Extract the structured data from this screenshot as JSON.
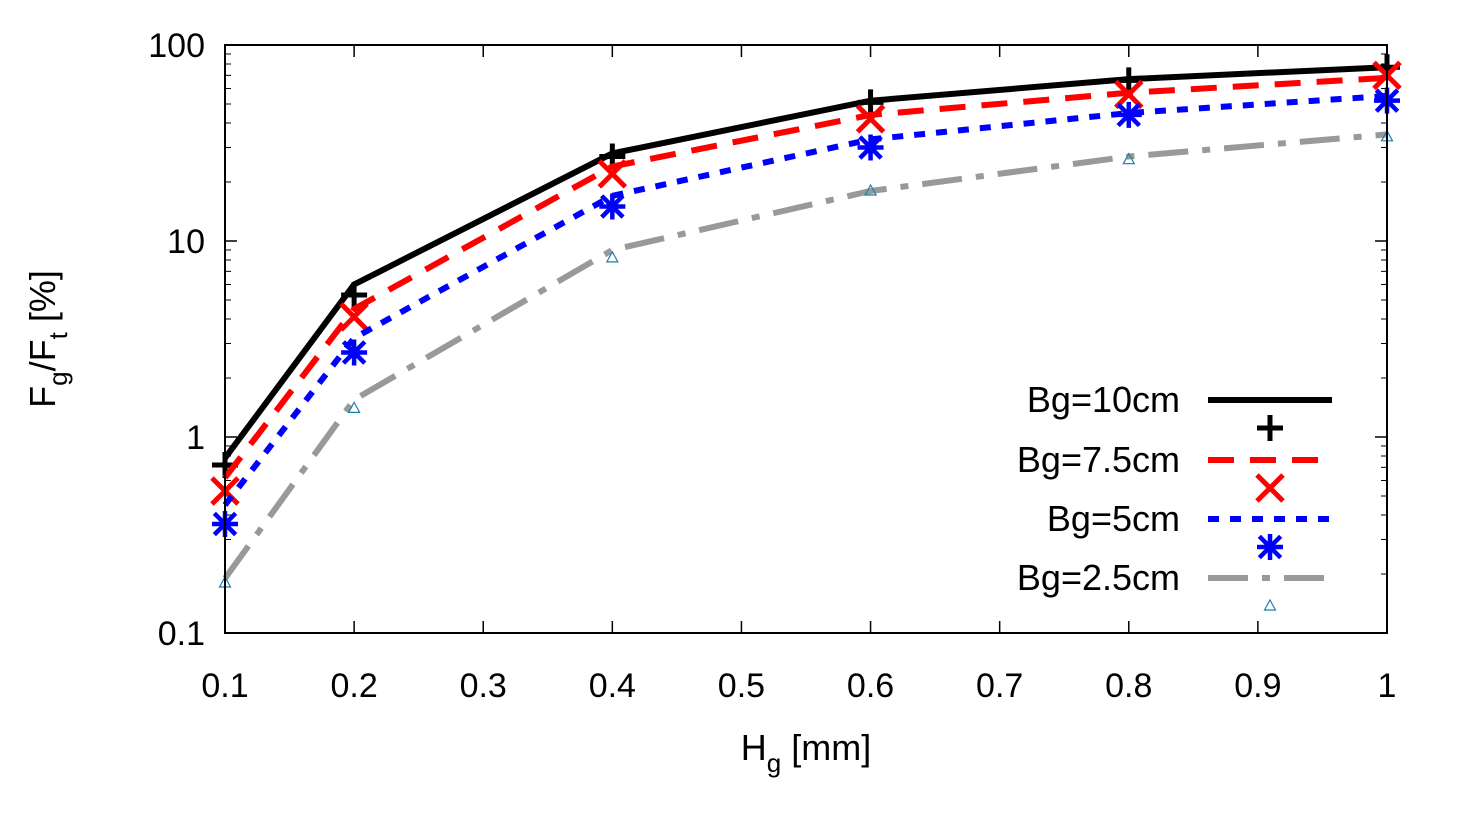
{
  "chart_data": {
    "type": "line",
    "x_scale": "linear",
    "y_scale": "log",
    "xlabel_main": "H",
    "xlabel_sub": "g",
    "xlabel_rest": " [mm]",
    "ylabel_parts": {
      "a": "F",
      "a_sub": "g",
      "b": "/F",
      "b_sub": "t",
      "rest": " [%]"
    },
    "xlim": [
      0.1,
      1.0
    ],
    "ylim": [
      0.1,
      100
    ],
    "xticks": [
      0.1,
      0.2,
      0.3,
      0.4,
      0.5,
      0.6,
      0.7,
      0.8,
      0.9,
      1.0
    ],
    "xtick_labels": [
      "0.1",
      "0.2",
      "0.3",
      "0.4",
      "0.5",
      "0.6",
      "0.7",
      "0.8",
      "0.9",
      "1"
    ],
    "yticks": [
      0.1,
      1,
      10,
      100
    ],
    "ytick_labels": [
      "0.1",
      "1",
      "10",
      "100"
    ],
    "grid": false,
    "legend_position": "bottom-right",
    "series": [
      {
        "name": "Bg=10cm",
        "line_color": "#000000",
        "line_dash": "solid",
        "marker": "plus",
        "marker_color": "#000000",
        "line_x": [
          0.1,
          0.2,
          0.4,
          0.6,
          0.8,
          1.0
        ],
        "line_y": [
          0.78,
          6.0,
          28,
          52,
          67,
          77
        ],
        "x": [
          0.1,
          0.2,
          0.4,
          0.6,
          0.8,
          1.0
        ],
        "y": [
          0.72,
          5.3,
          27,
          51,
          66,
          77
        ]
      },
      {
        "name": "Bg=7.5cm",
        "line_color": "#ff0000",
        "line_dash": "dash",
        "marker": "cross",
        "marker_color": "#ff0000",
        "line_x": [
          0.1,
          0.2,
          0.4,
          0.6,
          0.8,
          1.0
        ],
        "line_y": [
          0.62,
          4.5,
          24,
          44,
          57,
          68
        ],
        "x": [
          0.1,
          0.2,
          0.4,
          0.6,
          0.8,
          1.0
        ],
        "y": [
          0.53,
          4.1,
          22,
          42,
          56,
          70
        ]
      },
      {
        "name": "Bg=5cm",
        "line_color": "#0000ff",
        "line_dash": "dot",
        "marker": "asterisk",
        "marker_color": "#0000ff",
        "line_x": [
          0.1,
          0.2,
          0.4,
          0.6,
          0.8,
          1.0
        ],
        "line_y": [
          0.45,
          3.2,
          17,
          33,
          45,
          55
        ],
        "x": [
          0.1,
          0.2,
          0.4,
          0.6,
          0.8,
          1.0
        ],
        "y": [
          0.36,
          2.7,
          15,
          30,
          44,
          52
        ]
      },
      {
        "name": "Bg=2.5cm",
        "line_color": "#999999",
        "line_dash": "dashdot",
        "marker": "triangle",
        "marker_color": "#1a7fae",
        "line_x": [
          0.1,
          0.2,
          0.4,
          0.6,
          0.8,
          1.0
        ],
        "line_y": [
          0.19,
          1.55,
          9.0,
          18,
          27,
          35
        ],
        "x": [
          0.1,
          0.2,
          0.4,
          0.6,
          0.8,
          1.0
        ],
        "y": [
          0.18,
          1.4,
          8.2,
          18,
          26,
          34
        ]
      }
    ]
  }
}
